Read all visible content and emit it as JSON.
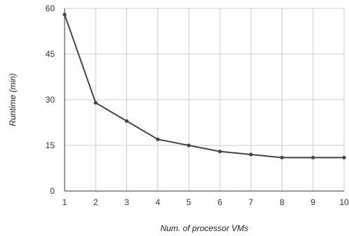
{
  "chart_data": {
    "type": "line",
    "title": "",
    "xlabel": "Num. of processor VMs",
    "ylabel": "Runtime (min)",
    "x": [
      1,
      2,
      3,
      4,
      5,
      6,
      7,
      8,
      9,
      10
    ],
    "xlim": [
      1,
      10
    ],
    "ylim": [
      0,
      60
    ],
    "x_ticks": [
      1,
      2,
      3,
      4,
      5,
      6,
      7,
      8,
      9,
      10
    ],
    "y_ticks": [
      0,
      15,
      30,
      45,
      60
    ],
    "grid": true,
    "legend": "none",
    "series": [
      {
        "values": [
          58,
          29,
          23,
          17,
          15,
          13,
          12,
          11,
          11,
          11
        ],
        "color": "#444444"
      }
    ]
  }
}
